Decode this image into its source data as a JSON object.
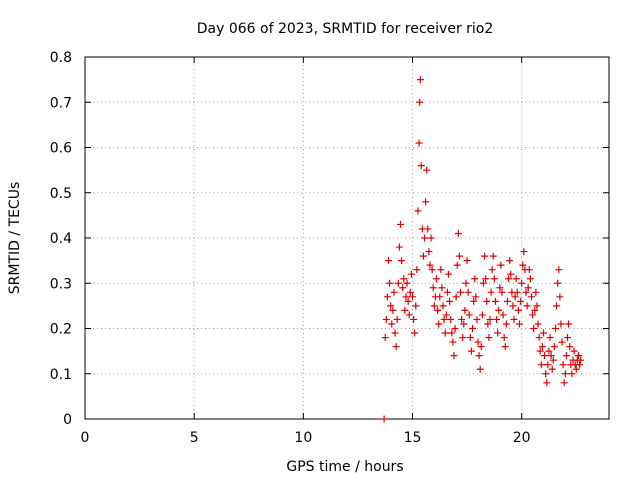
{
  "chart_data": {
    "type": "scatter",
    "title": "Day 066 of 2023, SRMTID for receiver rio2",
    "xlabel": "GPS time / hours",
    "ylabel": "SRMTID / TECUs",
    "xlim": [
      0,
      24
    ],
    "ylim": [
      0,
      0.8
    ],
    "xticks": [
      0,
      5,
      10,
      15,
      20
    ],
    "yticks": [
      0,
      0.1,
      0.2,
      0.3,
      0.4,
      0.5,
      0.6,
      0.7,
      0.8
    ],
    "grid": true,
    "marker": "plus",
    "color": "#e00000",
    "series": [
      {
        "name": "rio2",
        "points": [
          [
            13.7,
            0.0
          ],
          [
            13.75,
            0.18
          ],
          [
            13.8,
            0.22
          ],
          [
            13.85,
            0.27
          ],
          [
            13.9,
            0.35
          ],
          [
            13.95,
            0.3
          ],
          [
            14.0,
            0.25
          ],
          [
            14.05,
            0.21
          ],
          [
            14.1,
            0.24
          ],
          [
            14.15,
            0.28
          ],
          [
            14.2,
            0.19
          ],
          [
            14.25,
            0.16
          ],
          [
            14.3,
            0.22
          ],
          [
            14.35,
            0.3
          ],
          [
            14.4,
            0.38
          ],
          [
            14.45,
            0.43
          ],
          [
            14.5,
            0.35
          ],
          [
            14.55,
            0.29
          ],
          [
            14.6,
            0.31
          ],
          [
            14.65,
            0.24
          ],
          [
            14.7,
            0.27
          ],
          [
            14.75,
            0.3
          ],
          [
            14.8,
            0.26
          ],
          [
            14.85,
            0.23
          ],
          [
            14.9,
            0.28
          ],
          [
            14.95,
            0.32
          ],
          [
            15.0,
            0.27
          ],
          [
            15.05,
            0.22
          ],
          [
            15.1,
            0.19
          ],
          [
            15.15,
            0.25
          ],
          [
            15.2,
            0.33
          ],
          [
            15.25,
            0.46
          ],
          [
            15.3,
            0.61
          ],
          [
            15.33,
            0.7
          ],
          [
            15.36,
            0.75
          ],
          [
            15.4,
            0.56
          ],
          [
            15.45,
            0.42
          ],
          [
            15.5,
            0.36
          ],
          [
            15.55,
            0.4
          ],
          [
            15.6,
            0.48
          ],
          [
            15.65,
            0.55
          ],
          [
            15.7,
            0.42
          ],
          [
            15.75,
            0.37
          ],
          [
            15.8,
            0.34
          ],
          [
            15.85,
            0.4
          ],
          [
            15.9,
            0.33
          ],
          [
            15.95,
            0.29
          ],
          [
            16.0,
            0.25
          ],
          [
            16.05,
            0.27
          ],
          [
            16.1,
            0.31
          ],
          [
            16.15,
            0.24
          ],
          [
            16.2,
            0.21
          ],
          [
            16.25,
            0.27
          ],
          [
            16.3,
            0.33
          ],
          [
            16.35,
            0.29
          ],
          [
            16.4,
            0.25
          ],
          [
            16.45,
            0.22
          ],
          [
            16.5,
            0.19
          ],
          [
            16.55,
            0.23
          ],
          [
            16.6,
            0.28
          ],
          [
            16.65,
            0.32
          ],
          [
            16.7,
            0.26
          ],
          [
            16.75,
            0.22
          ],
          [
            16.8,
            0.19
          ],
          [
            16.85,
            0.17
          ],
          [
            16.9,
            0.14
          ],
          [
            16.95,
            0.2
          ],
          [
            17.0,
            0.27
          ],
          [
            17.05,
            0.34
          ],
          [
            17.1,
            0.41
          ],
          [
            17.15,
            0.36
          ],
          [
            17.2,
            0.28
          ],
          [
            17.25,
            0.22
          ],
          [
            17.3,
            0.18
          ],
          [
            17.35,
            0.21
          ],
          [
            17.4,
            0.24
          ],
          [
            17.45,
            0.3
          ],
          [
            17.5,
            0.35
          ],
          [
            17.55,
            0.28
          ],
          [
            17.6,
            0.23
          ],
          [
            17.65,
            0.18
          ],
          [
            17.7,
            0.15
          ],
          [
            17.75,
            0.2
          ],
          [
            17.8,
            0.26
          ],
          [
            17.85,
            0.31
          ],
          [
            17.9,
            0.27
          ],
          [
            17.95,
            0.22
          ],
          [
            18.0,
            0.17
          ],
          [
            18.05,
            0.14
          ],
          [
            18.1,
            0.11
          ],
          [
            18.15,
            0.16
          ],
          [
            18.2,
            0.23
          ],
          [
            18.25,
            0.3
          ],
          [
            18.3,
            0.36
          ],
          [
            18.35,
            0.31
          ],
          [
            18.4,
            0.26
          ],
          [
            18.45,
            0.21
          ],
          [
            18.5,
            0.18
          ],
          [
            18.55,
            0.22
          ],
          [
            18.6,
            0.28
          ],
          [
            18.65,
            0.33
          ],
          [
            18.7,
            0.36
          ],
          [
            18.75,
            0.31
          ],
          [
            18.8,
            0.26
          ],
          [
            18.85,
            0.22
          ],
          [
            18.9,
            0.19
          ],
          [
            18.95,
            0.24
          ],
          [
            19.0,
            0.29
          ],
          [
            19.05,
            0.34
          ],
          [
            19.1,
            0.28
          ],
          [
            19.15,
            0.23
          ],
          [
            19.2,
            0.18
          ],
          [
            19.25,
            0.16
          ],
          [
            19.3,
            0.21
          ],
          [
            19.35,
            0.26
          ],
          [
            19.4,
            0.31
          ],
          [
            19.45,
            0.35
          ],
          [
            19.5,
            0.32
          ],
          [
            19.55,
            0.28
          ],
          [
            19.6,
            0.25
          ],
          [
            19.65,
            0.22
          ],
          [
            19.7,
            0.27
          ],
          [
            19.75,
            0.31
          ],
          [
            19.8,
            0.28
          ],
          [
            19.85,
            0.24
          ],
          [
            19.9,
            0.21
          ],
          [
            19.95,
            0.26
          ],
          [
            20.0,
            0.3
          ],
          [
            20.05,
            0.34
          ],
          [
            20.1,
            0.37
          ],
          [
            20.15,
            0.33
          ],
          [
            20.2,
            0.28
          ],
          [
            20.25,
            0.25
          ],
          [
            20.3,
            0.29
          ],
          [
            20.35,
            0.33
          ],
          [
            20.4,
            0.31
          ],
          [
            20.45,
            0.27
          ],
          [
            20.5,
            0.23
          ],
          [
            20.55,
            0.2
          ],
          [
            20.6,
            0.24
          ],
          [
            20.65,
            0.28
          ],
          [
            20.7,
            0.25
          ],
          [
            20.75,
            0.21
          ],
          [
            20.8,
            0.18
          ],
          [
            20.85,
            0.15
          ],
          [
            20.9,
            0.12
          ],
          [
            20.95,
            0.16
          ],
          [
            21.0,
            0.19
          ],
          [
            21.05,
            0.14
          ],
          [
            21.1,
            0.1
          ],
          [
            21.15,
            0.08
          ],
          [
            21.2,
            0.12
          ],
          [
            21.25,
            0.15
          ],
          [
            21.3,
            0.18
          ],
          [
            21.35,
            0.14
          ],
          [
            21.4,
            0.11
          ],
          [
            21.45,
            0.13
          ],
          [
            21.5,
            0.16
          ],
          [
            21.55,
            0.2
          ],
          [
            21.6,
            0.25
          ],
          [
            21.65,
            0.3
          ],
          [
            21.7,
            0.33
          ],
          [
            21.75,
            0.27
          ],
          [
            21.8,
            0.21
          ],
          [
            21.85,
            0.17
          ],
          [
            21.9,
            0.12
          ],
          [
            21.95,
            0.08
          ],
          [
            22.0,
            0.1
          ],
          [
            22.05,
            0.14
          ],
          [
            22.1,
            0.18
          ],
          [
            22.15,
            0.21
          ],
          [
            22.2,
            0.16
          ],
          [
            22.25,
            0.12
          ],
          [
            22.3,
            0.1
          ],
          [
            22.35,
            0.13
          ],
          [
            22.4,
            0.15
          ],
          [
            22.45,
            0.12
          ],
          [
            22.5,
            0.11
          ],
          [
            22.55,
            0.13
          ],
          [
            22.6,
            0.14
          ],
          [
            22.65,
            0.12
          ],
          [
            22.7,
            0.13
          ]
        ]
      }
    ]
  }
}
